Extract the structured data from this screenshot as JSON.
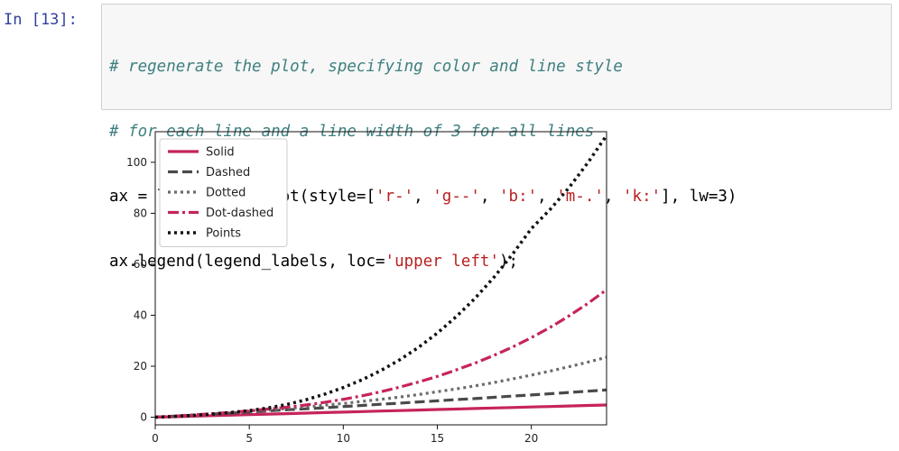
{
  "cell": {
    "prompt": "In [13]:",
    "code": [
      [
        {
          "t": "# regenerate the plot, specifying color and line style",
          "k": "comment"
        }
      ],
      [
        {
          "t": "# for each line and a line width of 3 for all lines",
          "k": "comment"
        }
      ],
      [
        {
          "t": "ax = line_style.plot(style=[",
          "k": "code"
        },
        {
          "t": "'r-'",
          "k": "str"
        },
        {
          "t": ", ",
          "k": "code"
        },
        {
          "t": "'g--'",
          "k": "str"
        },
        {
          "t": ", ",
          "k": "code"
        },
        {
          "t": "'b:'",
          "k": "str"
        },
        {
          "t": ", ",
          "k": "code"
        },
        {
          "t": "'m-.'",
          "k": "str"
        },
        {
          "t": ", ",
          "k": "code"
        },
        {
          "t": "'k:'",
          "k": "str"
        },
        {
          "t": "], lw=3)",
          "k": "code"
        }
      ],
      [
        {
          "t": "ax.legend(legend_labels, loc=",
          "k": "code"
        },
        {
          "t": "'upper left'",
          "k": "str"
        },
        {
          "t": ");",
          "k": "code"
        }
      ]
    ]
  },
  "colors": {
    "solid": "#c6245a",
    "dashed": "#4a4a4a",
    "dotted": "#6b6b6b",
    "dotdashed": "#c6245a",
    "points": "#111111"
  },
  "chart_data": {
    "type": "line",
    "x": [
      0,
      1,
      2,
      3,
      4,
      5,
      6,
      7,
      8,
      9,
      10,
      11,
      12,
      13,
      14,
      15,
      16,
      17,
      18,
      19,
      20,
      21,
      22,
      23,
      24
    ],
    "xlim": [
      0,
      24
    ],
    "ylim": [
      -3,
      112
    ],
    "xticks": [
      0,
      5,
      10,
      15,
      20
    ],
    "yticks": [
      0,
      20,
      40,
      60,
      80,
      100
    ],
    "legend_position": "upper left",
    "series": [
      {
        "name": "Solid",
        "style": "solid",
        "colorKey": "solid",
        "values": [
          0,
          0.2,
          0.4,
          0.6,
          0.8,
          1.0,
          1.2,
          1.4,
          1.6,
          1.8,
          2.0,
          2.2,
          2.4,
          2.6,
          2.8,
          3.0,
          3.2,
          3.4,
          3.6,
          3.8,
          4.0,
          4.2,
          4.4,
          4.6,
          4.8
        ]
      },
      {
        "name": "Dashed",
        "style": "dashed",
        "colorKey": "dashed",
        "values": [
          0,
          0.4,
          0.8,
          1.2,
          1.6,
          2.0,
          2.5,
          2.9,
          3.3,
          3.7,
          4.2,
          4.6,
          5.1,
          5.5,
          6.0,
          6.4,
          6.9,
          7.3,
          7.8,
          8.3,
          8.7,
          9.2,
          9.7,
          10.2,
          10.7
        ]
      },
      {
        "name": "Dotted",
        "style": "dotted",
        "colorKey": "dotted",
        "values": [
          0,
          0.4,
          0.8,
          1.3,
          1.8,
          2.3,
          2.8,
          3.4,
          4.0,
          4.7,
          5.4,
          6.2,
          7.0,
          7.9,
          8.9,
          10.0,
          11.1,
          12.3,
          13.6,
          15.0,
          16.5,
          18.1,
          19.8,
          21.6,
          23.5
        ]
      },
      {
        "name": "Dot-dashed",
        "style": "dotdash",
        "colorKey": "dotdashed",
        "values": [
          0,
          0.4,
          0.9,
          1.4,
          1.9,
          2.5,
          3.2,
          3.9,
          4.8,
          5.8,
          7.0,
          8.4,
          10.0,
          11.8,
          13.8,
          16.0,
          18.5,
          21.2,
          24.2,
          27.5,
          31.2,
          35.2,
          39.7,
          44.6,
          50.0
        ]
      },
      {
        "name": "Points",
        "style": "points",
        "colorKey": "points",
        "values": [
          0,
          0.3,
          0.7,
          1.2,
          1.8,
          2.6,
          3.6,
          5.0,
          6.8,
          9.0,
          11.6,
          14.7,
          18.3,
          22.5,
          27.4,
          33.0,
          39.4,
          46.6,
          54.8,
          63.9,
          74.0,
          81.5,
          90.0,
          99.8,
          110.5
        ]
      }
    ]
  }
}
